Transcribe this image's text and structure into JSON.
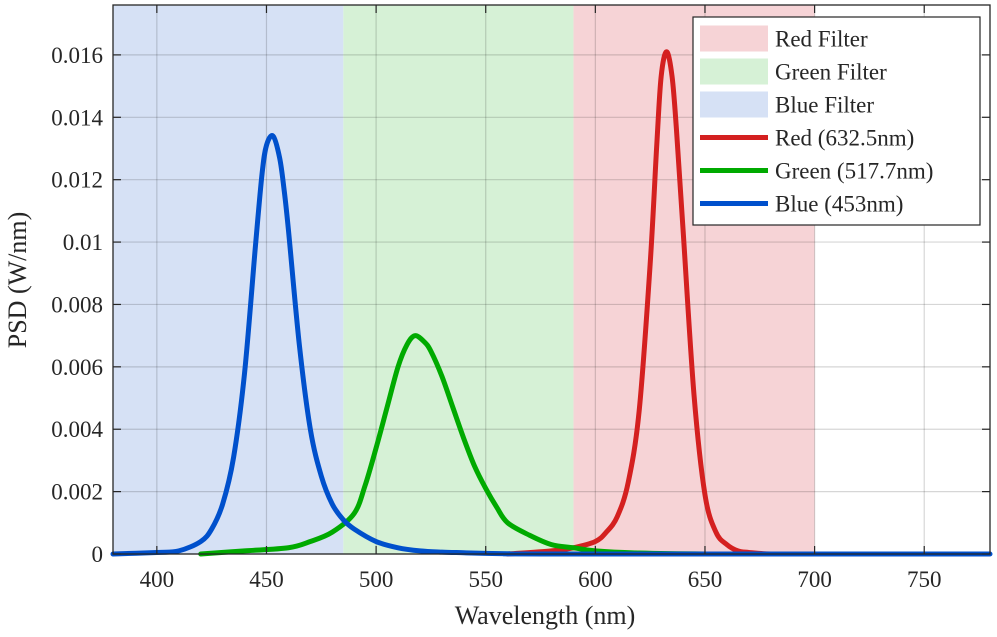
{
  "chart_data": {
    "type": "line",
    "title": "",
    "xlabel": "Wavelength (nm)",
    "ylabel": "PSD (W/nm)",
    "xlim": [
      380,
      780
    ],
    "ylim": [
      0,
      0.0176
    ],
    "grid": true,
    "legend_position": "top-right",
    "x_ticks": [
      400,
      450,
      500,
      550,
      600,
      650,
      700,
      750
    ],
    "x_tick_labels": [
      "400",
      "450",
      "500",
      "550",
      "600",
      "650",
      "700",
      "750"
    ],
    "y_ticks": [
      0,
      0.002,
      0.004,
      0.006,
      0.008,
      0.01,
      0.012,
      0.014,
      0.016
    ],
    "y_tick_labels": [
      "0",
      "0.002",
      "0.004",
      "0.006",
      "0.008",
      "0.01",
      "0.012",
      "0.014",
      "0.016"
    ],
    "bands": [
      {
        "name": "Red Filter",
        "x_range": [
          590,
          700
        ],
        "color": "#f6d3d6"
      },
      {
        "name": "Green Filter",
        "x_range": [
          485,
          590
        ],
        "color": "#d6f1d6"
      },
      {
        "name": "Blue Filter",
        "x_range": [
          380,
          485
        ],
        "color": "#d6e1f5"
      }
    ],
    "series": [
      {
        "name": "Red (632.5nm)",
        "color": "#d42020",
        "x": [
          560,
          580,
          590,
          600,
          605,
          610,
          615,
          620,
          625,
          628,
          630,
          632.5,
          635,
          637,
          640,
          645,
          650,
          655,
          660,
          665,
          670,
          680,
          700
        ],
        "y": [
          0,
          0.0001,
          0.0002,
          0.0004,
          0.0007,
          0.0012,
          0.0023,
          0.0046,
          0.0093,
          0.0131,
          0.0153,
          0.0161,
          0.0153,
          0.0136,
          0.0104,
          0.0051,
          0.0019,
          0.0007,
          0.0003,
          0.0001,
          5e-05,
          0,
          0
        ]
      },
      {
        "name": "Green (517.7nm)",
        "color": "#00aa00",
        "x": [
          420,
          440,
          460,
          470,
          480,
          490,
          495,
          500,
          505,
          510,
          514,
          517.7,
          522,
          525,
          530,
          535,
          540,
          545,
          550,
          555,
          560,
          570,
          580,
          590,
          600,
          620,
          650,
          700
        ],
        "y": [
          0,
          0.0001,
          0.0002,
          0.0004,
          0.0007,
          0.0013,
          0.0022,
          0.0034,
          0.0047,
          0.006,
          0.0067,
          0.007,
          0.0068,
          0.0065,
          0.0057,
          0.0047,
          0.0037,
          0.0028,
          0.0021,
          0.0015,
          0.001,
          0.0006,
          0.0003,
          0.0002,
          0.0001,
          3e-05,
          0,
          0
        ]
      },
      {
        "name": "Blue (453nm)",
        "color": "#0050cc",
        "x": [
          380,
          400,
          410,
          420,
          425,
          430,
          435,
          440,
          445,
          448,
          450,
          453,
          456,
          458,
          460,
          465,
          470,
          475,
          480,
          485,
          490,
          500,
          510,
          520,
          530,
          540,
          550,
          560,
          580,
          780
        ],
        "y": [
          0,
          5e-05,
          0.0001,
          0.0004,
          0.0008,
          0.0016,
          0.0031,
          0.0058,
          0.0099,
          0.0122,
          0.0131,
          0.0134,
          0.0127,
          0.0117,
          0.0104,
          0.0067,
          0.004,
          0.0025,
          0.0016,
          0.0011,
          0.0008,
          0.0004,
          0.0002,
          0.0001,
          6e-05,
          4e-05,
          2e-05,
          1e-05,
          0,
          0
        ]
      }
    ],
    "legend": [
      {
        "label": "Red Filter",
        "kind": "patch",
        "color": "#f6d3d6"
      },
      {
        "label": "Green Filter",
        "kind": "patch",
        "color": "#d6f1d6"
      },
      {
        "label": "Blue Filter",
        "kind": "patch",
        "color": "#d6e1f5"
      },
      {
        "label": "Red (632.5nm)",
        "kind": "line",
        "color": "#d42020"
      },
      {
        "label": "Green (517.7nm)",
        "kind": "line",
        "color": "#00aa00"
      },
      {
        "label": "Blue (453nm)",
        "kind": "line",
        "color": "#0050cc"
      }
    ]
  }
}
